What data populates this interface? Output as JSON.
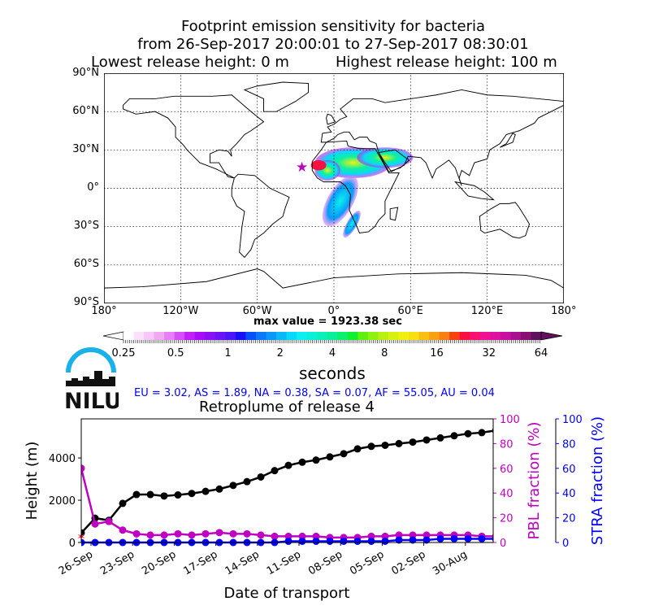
{
  "title": {
    "line1": "Footprint emission sensitivity for bacteria",
    "line2": "from 26-Sep-2017 20:00:01 to 27-Sep-2017 08:30:01",
    "line3a": "Lowest release height: 0 m",
    "line3b": "Highest release height: 100 m"
  },
  "map": {
    "lat_labels": [
      "90°N",
      "60°N",
      "30°N",
      "0°",
      "30°S",
      "60°S",
      "90°S"
    ],
    "lon_labels": [
      "180°",
      "120°W",
      "60°W",
      "0°",
      "60°E",
      "120°E",
      "180°"
    ],
    "max_value": "max value = 1923.38 sec"
  },
  "colorbar": {
    "ticks": [
      "0.25",
      "0.5",
      "1",
      "2",
      "4",
      "8",
      "16",
      "32",
      "64"
    ],
    "label": "seconds",
    "colors": [
      "#ffffff",
      "#fbe0fb",
      "#f7c8f7",
      "#f0a8f0",
      "#e77ef5",
      "#d44ff7",
      "#c21ef8",
      "#a80cf8",
      "#8a10f8",
      "#6a14f8",
      "#4a18f8",
      "#1a10f8",
      "#0a50f8",
      "#0a78f8",
      "#0a98f8",
      "#0ab8f8",
      "#0ad8f8",
      "#0af0f0",
      "#0af0d8",
      "#0af0b8",
      "#0af098",
      "#0af070",
      "#10f030",
      "#60f010",
      "#90f010",
      "#b8f010",
      "#d8f010",
      "#f0f010",
      "#f8e010",
      "#f8c010",
      "#f8a010",
      "#f88010",
      "#f84010",
      "#f81040",
      "#f81070",
      "#f01090",
      "#e010a0",
      "#c810a0",
      "#a81090",
      "#881070",
      "#601060"
    ]
  },
  "logo": {
    "text": "NILU"
  },
  "regions": "EU = 3.02,  AS = 1.89,  NA = 0.38,  SA = 0.07,  AF = 55.05,  AU = 0.04",
  "chart_data": {
    "type": "line",
    "title": "Retroplume of release 4",
    "xlabel": "Date of transport",
    "ylabel": "Height (m)",
    "ylabel_right1": "PBL fraction (%)",
    "ylabel_right2": "STRA fraction (%)",
    "ylim": [
      0,
      5850
    ],
    "ylim_right": [
      0,
      100
    ],
    "yticks": [
      "0",
      "2000",
      "4000"
    ],
    "yticks_right": [
      "0",
      "20",
      "40",
      "60",
      "80",
      "100"
    ],
    "xticks": [
      "26-Sep",
      "23-Sep",
      "20-Sep",
      "17-Sep",
      "14-Sep",
      "11-Sep",
      "08-Sep",
      "05-Sep",
      "02-Sep",
      "30-Aug"
    ],
    "x_days_before_release": [
      0,
      1,
      2,
      3,
      4,
      5,
      6,
      7,
      8,
      9,
      10,
      11,
      12,
      13,
      14,
      15,
      16,
      17,
      18,
      19,
      20,
      21,
      22,
      23,
      24,
      25,
      26,
      27,
      28,
      29,
      30
    ],
    "series": [
      {
        "name": "Height",
        "axis": "left",
        "color": "#000000",
        "values": [
          450,
          1150,
          1050,
          1850,
          2270,
          2270,
          2200,
          2250,
          2320,
          2420,
          2530,
          2700,
          2880,
          3100,
          3400,
          3650,
          3800,
          3900,
          4050,
          4200,
          4430,
          4550,
          4600,
          4680,
          4750,
          4850,
          4950,
          5050,
          5150,
          5200,
          5300
        ]
      },
      {
        "name": "PBL fraction",
        "axis": "right1",
        "color": "#c000c0",
        "values": [
          60,
          15,
          17,
          10,
          7,
          6,
          6,
          7,
          6,
          7,
          8,
          7,
          7,
          6,
          5,
          5,
          5,
          5,
          4,
          4,
          4,
          5,
          5,
          6,
          6,
          6,
          6,
          6,
          6,
          5,
          5
        ]
      },
      {
        "name": "STRA fraction",
        "axis": "right2",
        "color": "#0000ff",
        "values": [
          0,
          0,
          0,
          0,
          0,
          0,
          0,
          0,
          0,
          0,
          0,
          0,
          0,
          0,
          0,
          1,
          1,
          1,
          1,
          1,
          1,
          1,
          1,
          2,
          2,
          2,
          3,
          3,
          3,
          3,
          3
        ]
      }
    ]
  }
}
